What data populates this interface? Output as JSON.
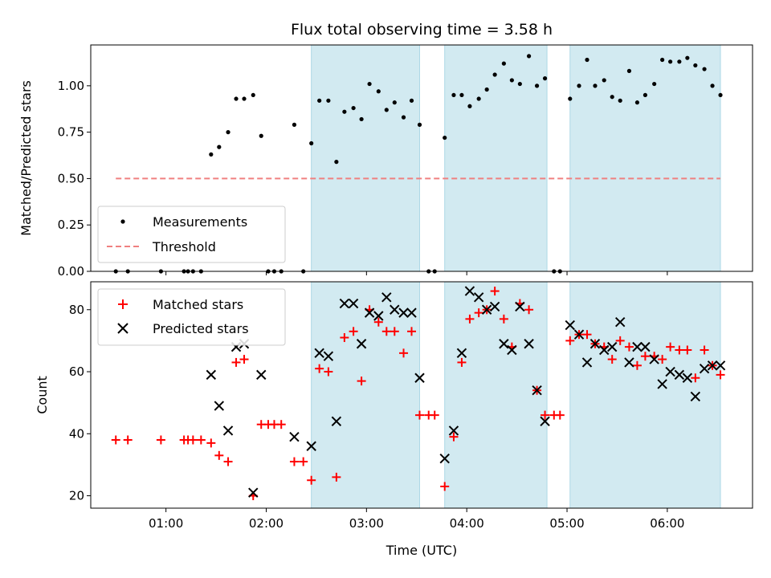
{
  "chart_data": [
    {
      "type": "scatter",
      "title": "Flux total observing time = 3.58 h",
      "xlabel": "",
      "ylabel": "Matched/Predicted stars",
      "ylim": [
        0,
        1.22
      ],
      "yticks": [
        0.0,
        0.25,
        0.5,
        0.75,
        1.0
      ],
      "ytick_labels": [
        "0.00",
        "0.25",
        "0.50",
        "0.75",
        "1.00"
      ],
      "xlim_hours": [
        0.25,
        6.85
      ],
      "legend": {
        "placement": "lower-left",
        "entries": [
          "Measurements",
          "Threshold"
        ]
      },
      "shaded_spans_hours": [
        [
          2.45,
          3.53
        ],
        [
          3.78,
          4.8
        ],
        [
          5.03,
          6.53
        ]
      ],
      "shade_color": "#add8e6",
      "series": [
        {
          "name": "Measurements",
          "color": "#000000",
          "points": [
            [
              0.5,
              0.0
            ],
            [
              0.62,
              0.0
            ],
            [
              0.95,
              0.0
            ],
            [
              1.18,
              0.0
            ],
            [
              1.22,
              0.0
            ],
            [
              1.27,
              0.0
            ],
            [
              1.35,
              0.0
            ],
            [
              1.45,
              0.63
            ],
            [
              1.53,
              0.67
            ],
            [
              1.62,
              0.75
            ],
            [
              1.7,
              0.93
            ],
            [
              1.78,
              0.93
            ],
            [
              1.87,
              0.95
            ],
            [
              1.95,
              0.73
            ],
            [
              2.02,
              0.0
            ],
            [
              2.08,
              0.0
            ],
            [
              2.15,
              0.0
            ],
            [
              2.28,
              0.79
            ],
            [
              2.37,
              0.0
            ],
            [
              2.45,
              0.69
            ],
            [
              2.53,
              0.92
            ],
            [
              2.62,
              0.92
            ],
            [
              2.7,
              0.59
            ],
            [
              2.78,
              0.86
            ],
            [
              2.87,
              0.88
            ],
            [
              2.95,
              0.82
            ],
            [
              3.03,
              1.01
            ],
            [
              3.12,
              0.97
            ],
            [
              3.2,
              0.87
            ],
            [
              3.28,
              0.91
            ],
            [
              3.37,
              0.83
            ],
            [
              3.45,
              0.92
            ],
            [
              3.53,
              0.79
            ],
            [
              3.62,
              0.0
            ],
            [
              3.68,
              0.0
            ],
            [
              3.78,
              0.72
            ],
            [
              3.87,
              0.95
            ],
            [
              3.95,
              0.95
            ],
            [
              4.03,
              0.89
            ],
            [
              4.12,
              0.93
            ],
            [
              4.2,
              0.98
            ],
            [
              4.28,
              1.06
            ],
            [
              4.37,
              1.12
            ],
            [
              4.45,
              1.03
            ],
            [
              4.53,
              1.01
            ],
            [
              4.62,
              1.16
            ],
            [
              4.7,
              1.0
            ],
            [
              4.78,
              1.04
            ],
            [
              4.87,
              0.0
            ],
            [
              4.93,
              0.0
            ],
            [
              5.03,
              0.93
            ],
            [
              5.12,
              1.0
            ],
            [
              5.2,
              1.14
            ],
            [
              5.28,
              1.0
            ],
            [
              5.37,
              1.03
            ],
            [
              5.45,
              0.94
            ],
            [
              5.53,
              0.92
            ],
            [
              5.62,
              1.08
            ],
            [
              5.7,
              0.91
            ],
            [
              5.78,
              0.95
            ],
            [
              5.87,
              1.01
            ],
            [
              5.95,
              1.14
            ],
            [
              6.03,
              1.13
            ],
            [
              6.12,
              1.13
            ],
            [
              6.2,
              1.15
            ],
            [
              6.28,
              1.11
            ],
            [
              6.37,
              1.09
            ],
            [
              6.45,
              1.0
            ],
            [
              6.53,
              0.95
            ]
          ]
        },
        {
          "name": "Threshold",
          "color": "#f08080",
          "style": "dashed",
          "points": [
            [
              0.5,
              0.5
            ],
            [
              6.53,
              0.5
            ]
          ]
        }
      ]
    },
    {
      "type": "scatter",
      "title": "",
      "xlabel": "Time (UTC)",
      "ylabel": "Count",
      "ylim": [
        16,
        89
      ],
      "yticks": [
        20,
        40,
        60,
        80
      ],
      "ytick_labels": [
        "20",
        "40",
        "60",
        "80"
      ],
      "xlim_hours": [
        0.25,
        6.85
      ],
      "xticks_hours": [
        1,
        2,
        3,
        4,
        5,
        6
      ],
      "xtick_labels": [
        "01:00",
        "02:00",
        "03:00",
        "04:00",
        "05:00",
        "06:00"
      ],
      "legend": {
        "placement": "upper-left",
        "entries": [
          "Matched stars",
          "Predicted stars"
        ]
      },
      "shaded_spans_hours": [
        [
          2.45,
          3.53
        ],
        [
          3.78,
          4.8
        ],
        [
          5.03,
          6.53
        ]
      ],
      "shade_color": "#add8e6",
      "series": [
        {
          "name": "Matched stars",
          "marker": "plus",
          "color": "#ff0000",
          "points": [
            [
              0.5,
              38
            ],
            [
              0.62,
              38
            ],
            [
              0.95,
              38
            ],
            [
              1.18,
              38
            ],
            [
              1.22,
              38
            ],
            [
              1.27,
              38
            ],
            [
              1.35,
              38
            ],
            [
              1.45,
              37
            ],
            [
              1.53,
              33
            ],
            [
              1.62,
              31
            ],
            [
              1.7,
              63
            ],
            [
              1.78,
              64
            ],
            [
              1.87,
              20
            ],
            [
              1.95,
              43
            ],
            [
              2.02,
              43
            ],
            [
              2.08,
              43
            ],
            [
              2.15,
              43
            ],
            [
              2.28,
              31
            ],
            [
              2.37,
              31
            ],
            [
              2.45,
              25
            ],
            [
              2.53,
              61
            ],
            [
              2.62,
              60
            ],
            [
              2.7,
              26
            ],
            [
              2.78,
              71
            ],
            [
              2.87,
              73
            ],
            [
              2.95,
              57
            ],
            [
              3.03,
              80
            ],
            [
              3.12,
              76
            ],
            [
              3.2,
              73
            ],
            [
              3.28,
              73
            ],
            [
              3.37,
              66
            ],
            [
              3.45,
              73
            ],
            [
              3.53,
              46
            ],
            [
              3.62,
              46
            ],
            [
              3.68,
              46
            ],
            [
              3.78,
              23
            ],
            [
              3.87,
              39
            ],
            [
              3.95,
              63
            ],
            [
              4.03,
              77
            ],
            [
              4.12,
              79
            ],
            [
              4.2,
              80
            ],
            [
              4.28,
              86
            ],
            [
              4.37,
              77
            ],
            [
              4.45,
              68
            ],
            [
              4.53,
              82
            ],
            [
              4.62,
              80
            ],
            [
              4.7,
              54
            ],
            [
              4.78,
              46
            ],
            [
              4.87,
              46
            ],
            [
              4.93,
              46
            ],
            [
              5.03,
              70
            ],
            [
              5.12,
              72
            ],
            [
              5.2,
              72
            ],
            [
              5.28,
              69
            ],
            [
              5.37,
              68
            ],
            [
              5.45,
              64
            ],
            [
              5.53,
              70
            ],
            [
              5.62,
              68
            ],
            [
              5.7,
              62
            ],
            [
              5.78,
              65
            ],
            [
              5.87,
              65
            ],
            [
              5.95,
              64
            ],
            [
              6.03,
              68
            ],
            [
              6.12,
              67
            ],
            [
              6.2,
              67
            ],
            [
              6.28,
              58
            ],
            [
              6.37,
              67
            ],
            [
              6.45,
              62
            ],
            [
              6.53,
              59
            ]
          ]
        },
        {
          "name": "Predicted stars",
          "marker": "x",
          "color": "#000000",
          "points": [
            [
              1.45,
              59
            ],
            [
              1.53,
              49
            ],
            [
              1.62,
              41
            ],
            [
              1.7,
              68
            ],
            [
              1.78,
              69
            ],
            [
              1.87,
              21
            ],
            [
              1.95,
              59
            ],
            [
              2.28,
              39
            ],
            [
              2.45,
              36
            ],
            [
              2.53,
              66
            ],
            [
              2.62,
              65
            ],
            [
              2.7,
              44
            ],
            [
              2.78,
              82
            ],
            [
              2.87,
              82
            ],
            [
              2.95,
              69
            ],
            [
              3.03,
              79
            ],
            [
              3.12,
              78
            ],
            [
              3.2,
              84
            ],
            [
              3.28,
              80
            ],
            [
              3.37,
              79
            ],
            [
              3.45,
              79
            ],
            [
              3.53,
              58
            ],
            [
              3.78,
              32
            ],
            [
              3.87,
              41
            ],
            [
              3.95,
              66
            ],
            [
              4.03,
              86
            ],
            [
              4.12,
              84
            ],
            [
              4.2,
              80
            ],
            [
              4.28,
              81
            ],
            [
              4.37,
              69
            ],
            [
              4.45,
              67
            ],
            [
              4.53,
              81
            ],
            [
              4.62,
              69
            ],
            [
              4.7,
              54
            ],
            [
              4.78,
              44
            ],
            [
              5.03,
              75
            ],
            [
              5.12,
              72
            ],
            [
              5.2,
              63
            ],
            [
              5.28,
              69
            ],
            [
              5.37,
              67
            ],
            [
              5.45,
              68
            ],
            [
              5.53,
              76
            ],
            [
              5.62,
              63
            ],
            [
              5.7,
              68
            ],
            [
              5.78,
              68
            ],
            [
              5.87,
              64
            ],
            [
              5.95,
              56
            ],
            [
              6.03,
              60
            ],
            [
              6.12,
              59
            ],
            [
              6.2,
              58
            ],
            [
              6.28,
              52
            ],
            [
              6.37,
              61
            ],
            [
              6.45,
              62
            ],
            [
              6.53,
              62
            ]
          ]
        }
      ]
    }
  ]
}
